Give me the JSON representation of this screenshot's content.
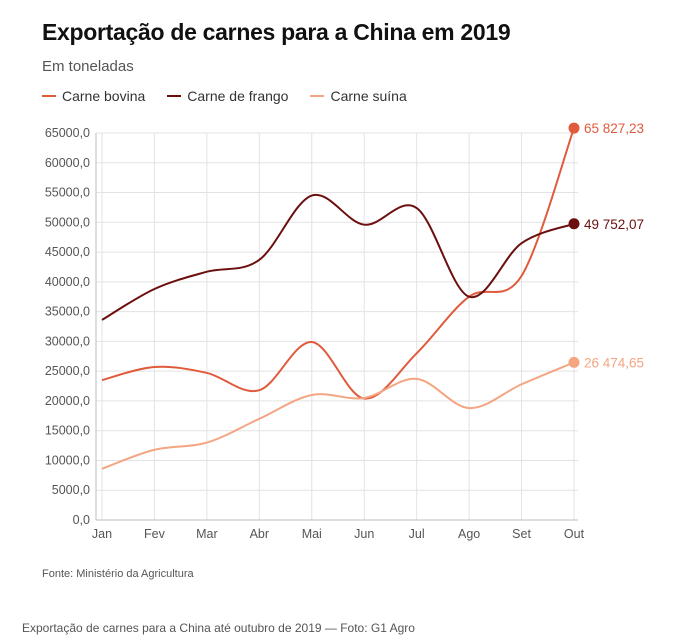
{
  "header": {
    "title": "Exportação de carnes para a China em 2019",
    "subtitle": "Em toneladas"
  },
  "footer": {
    "source": "Fonte: Ministério da Agricultura",
    "caption": "Exportação de carnes para a China até outubro de 2019 — Foto: G1 Agro"
  },
  "chart_data": {
    "type": "line",
    "title": "Exportação de carnes para a China em 2019",
    "subtitle": "Em toneladas",
    "x": [
      "Jan",
      "Fev",
      "Mar",
      "Abr",
      "Mai",
      "Jun",
      "Jul",
      "Ago",
      "Set",
      "Out"
    ],
    "ylim": [
      0,
      65000
    ],
    "yticks": [
      "0,0",
      "5000,0",
      "10000,0",
      "15000,0",
      "20000,0",
      "25000,0",
      "30000,0",
      "35000,0",
      "40000,0",
      "45000,0",
      "50000,0",
      "55000,0",
      "60000,0",
      "65000,0"
    ],
    "grid": true,
    "legend_position": "top-left",
    "series": [
      {
        "name": "Carne bovina",
        "color": "#e05a3c",
        "values": [
          23500,
          25700,
          24700,
          21800,
          29900,
          20400,
          28000,
          37500,
          41000,
          65827.23
        ],
        "end_label": "65 827,23"
      },
      {
        "name": "Carne de frango",
        "color": "#6b0f0f",
        "values": [
          33600,
          38800,
          41700,
          43700,
          54500,
          49600,
          52400,
          37500,
          46500,
          49752.07
        ],
        "end_label": "49 752,07"
      },
      {
        "name": "Carne suína",
        "color": "#f4a582",
        "values": [
          8600,
          11800,
          13000,
          17000,
          21000,
          20500,
          23700,
          18800,
          22800,
          26474.65
        ],
        "end_label": "26 474,65"
      }
    ]
  }
}
